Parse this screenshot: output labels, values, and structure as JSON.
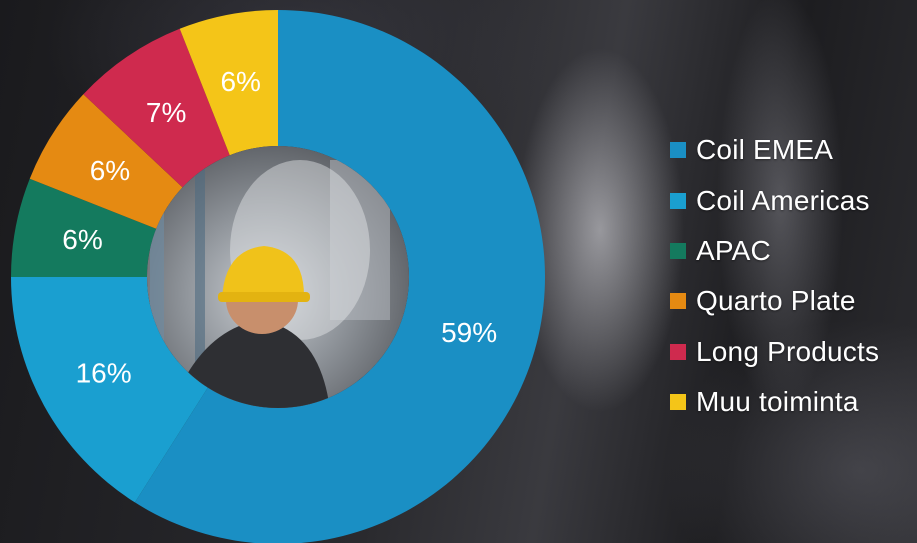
{
  "chart_data": {
    "type": "pie",
    "categories": [
      "Coil EMEA",
      "Coil Americas",
      "APAC",
      "Quarto Plate",
      "Long Products",
      "Muu toiminta"
    ],
    "values": [
      59,
      16,
      6,
      6,
      7,
      6
    ],
    "labels": [
      "59%",
      "16%",
      "6%",
      "6%",
      "7%",
      "6%"
    ],
    "colors": [
      "#1a8fc4",
      "#1a9fd0",
      "#147a5e",
      "#e58a12",
      "#cf2a4e",
      "#f4c518"
    ],
    "donut": true,
    "legend_position": "right",
    "label_color": "#ffffff"
  }
}
